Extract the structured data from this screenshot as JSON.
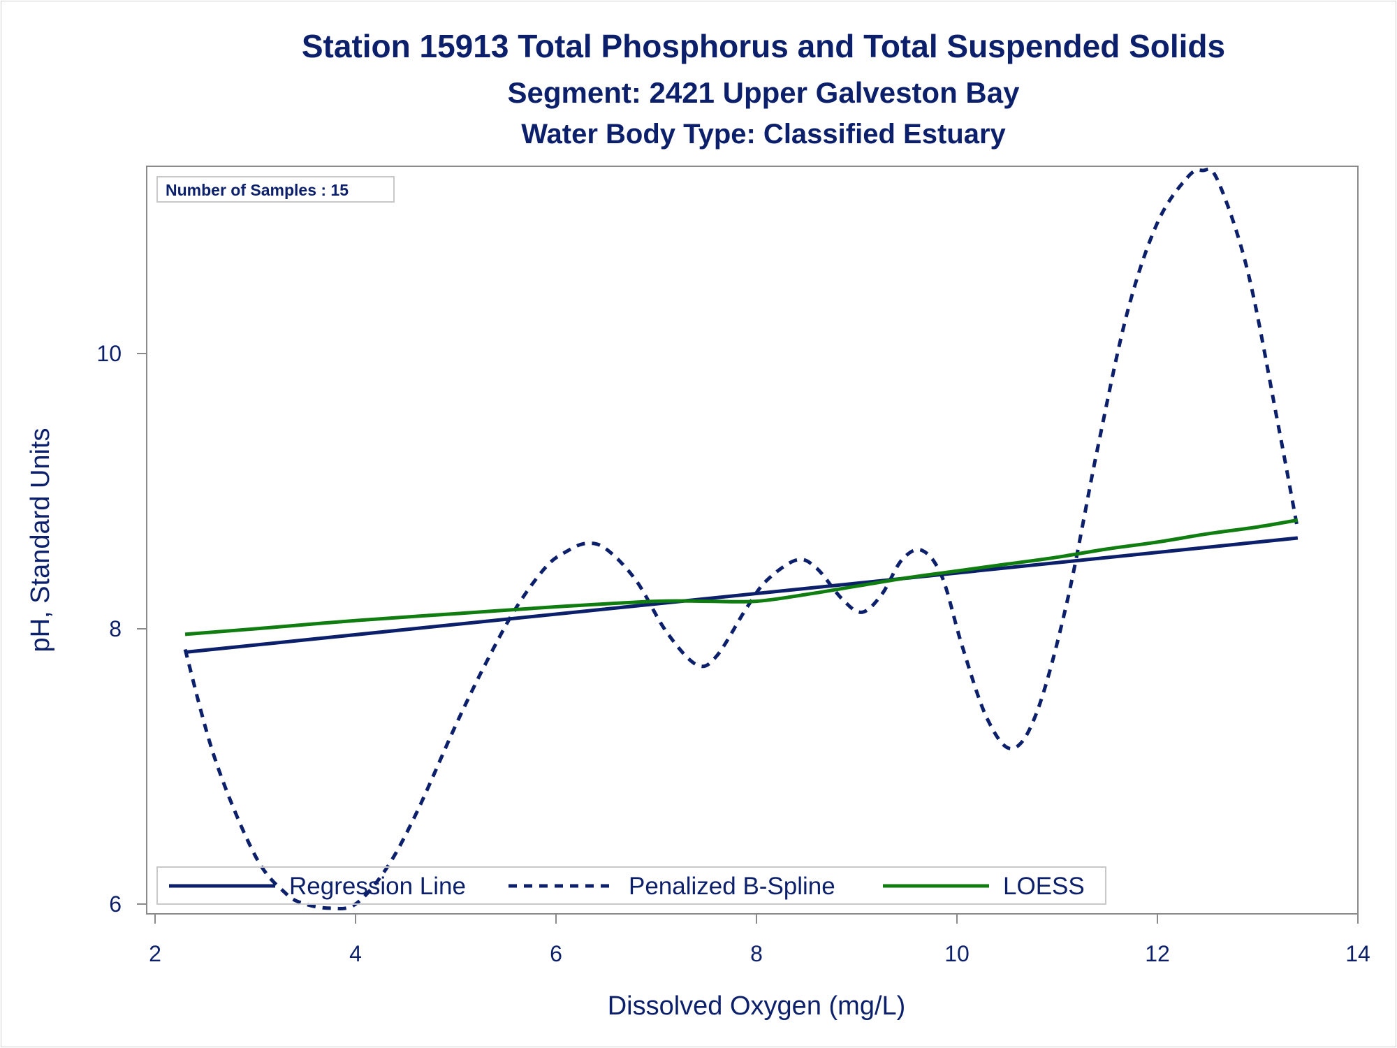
{
  "chart_data": {
    "type": "line",
    "title": "Station 15913  Total Phosphorus and Total Suspended Solids",
    "subtitle": "Segment: 2421  Upper Galveston Bay",
    "subtitle2": "Water Body Type: Classified Estuary",
    "xlabel": "Dissolved Oxygen (mg/L)",
    "ylabel": "pH, Standard Units",
    "xlim": [
      2,
      14
    ],
    "ylim": [
      6,
      11.4
    ],
    "xticks": [
      2,
      4,
      6,
      8,
      10,
      12,
      14
    ],
    "yticks": [
      6,
      8,
      10
    ],
    "inset": "Number of Samples : 15",
    "grid": false,
    "legend_position": "bottom-inside",
    "series": [
      {
        "name": "Regression Line",
        "style": "solid",
        "color": "#0b1f6b",
        "x": [
          2.3,
          13.4
        ],
        "y": [
          7.83,
          8.66
        ]
      },
      {
        "name": "Penalized B-Spline",
        "style": "dashed",
        "color": "#0b1f6b",
        "x": [
          2.3,
          2.6,
          3.0,
          3.3,
          3.5,
          3.75,
          4.0,
          4.3,
          4.6,
          5.0,
          5.3,
          5.6,
          5.9,
          6.1,
          6.3,
          6.5,
          6.8,
          7.1,
          7.4,
          7.6,
          7.9,
          8.1,
          8.4,
          8.6,
          8.85,
          9.05,
          9.25,
          9.45,
          9.65,
          9.85,
          10.05,
          10.3,
          10.55,
          10.8,
          11.1,
          11.4,
          11.7,
          12.0,
          12.3,
          12.45,
          12.6,
          12.9,
          13.2,
          13.4
        ],
        "y": [
          7.85,
          7.05,
          6.35,
          6.08,
          6.0,
          5.97,
          6.0,
          6.25,
          6.65,
          7.3,
          7.75,
          8.15,
          8.45,
          8.56,
          8.62,
          8.58,
          8.35,
          7.98,
          7.74,
          7.8,
          8.15,
          8.35,
          8.5,
          8.44,
          8.22,
          8.12,
          8.25,
          8.5,
          8.57,
          8.38,
          7.88,
          7.35,
          7.13,
          7.4,
          8.2,
          9.3,
          10.3,
          10.95,
          11.28,
          11.33,
          11.26,
          10.6,
          9.5,
          8.72
        ]
      },
      {
        "name": "LOESS",
        "style": "solid",
        "color": "#0f7d0f",
        "x": [
          2.3,
          3.0,
          4.0,
          5.0,
          6.0,
          7.0,
          7.5,
          8.0,
          8.5,
          9.0,
          9.5,
          10.0,
          10.5,
          11.0,
          11.5,
          12.0,
          12.5,
          13.0,
          13.4
        ],
        "y": [
          7.96,
          8.0,
          8.06,
          8.11,
          8.16,
          8.2,
          8.2,
          8.2,
          8.25,
          8.31,
          8.37,
          8.42,
          8.47,
          8.52,
          8.58,
          8.63,
          8.69,
          8.74,
          8.79
        ]
      }
    ]
  }
}
